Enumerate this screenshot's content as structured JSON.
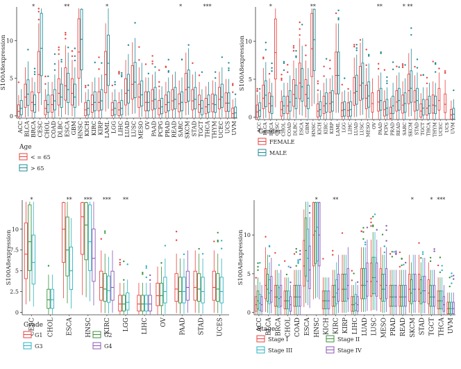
{
  "colors": {
    "red": "#e8423f",
    "teal": "#1f8a94",
    "green": "#3a8f3a",
    "cyan": "#2ab0c0",
    "purple": "#8a55b5",
    "axis": "#333333"
  },
  "chart_data": [
    {
      "id": "A",
      "type": "box",
      "title": "",
      "xlabel": "",
      "ylabel": "S100A8expression",
      "ylim": [
        -0.3,
        14.5
      ],
      "yticks": [
        0,
        5,
        10
      ],
      "categories": [
        "ACC",
        "BLCA",
        "BRCA",
        "CESC",
        "CHOL",
        "COAD",
        "DLBC",
        "ESCA",
        "GBM",
        "HNSC",
        "KICH",
        "KIRC",
        "KIRP",
        "LAML",
        "LGG",
        "LIHC",
        "LUAD",
        "LUSC",
        "MESO",
        "OV",
        "PAAD",
        "PCPG",
        "PRAD",
        "READ",
        "SARC",
        "SKCM",
        "STAD",
        "TGCT",
        "THCA",
        "THYM",
        "UCEC",
        "UCS",
        "UVM"
      ],
      "significance": [
        "",
        "",
        "*",
        "",
        "",
        "",
        "",
        "**",
        "",
        "",
        "",
        "",
        "",
        "*",
        "",
        "",
        "",
        "",
        "",
        "",
        "",
        "",
        "",
        "",
        "*",
        "",
        "",
        "",
        "***",
        "",
        "",
        "",
        ""
      ],
      "legend": {
        "title": "Age",
        "entries": [
          "< = 65",
          "> 65"
        ]
      },
      "series": [
        {
          "name": "< = 65",
          "medians": [
            0.6,
            2.5,
            1.8,
            5.5,
            1.0,
            1.5,
            3.0,
            4.0,
            3.0,
            8.5,
            0.8,
            1.5,
            1.8,
            5.5,
            0.8,
            0.8,
            3.0,
            4.2,
            2.5,
            1.8,
            2.0,
            1.0,
            1.5,
            2.0,
            1.6,
            3.5,
            2.0,
            1.5,
            1.2,
            1.6,
            2.2,
            1.7,
            0.3
          ]
        },
        {
          "name": "> 65",
          "medians": [
            1.0,
            2.9,
            1.5,
            9.0,
            1.5,
            2.0,
            2.5,
            3.5,
            2.5,
            10.2,
            1.0,
            1.8,
            2.0,
            7.0,
            1.0,
            1.0,
            3.4,
            4.5,
            2.8,
            1.8,
            2.2,
            1.2,
            1.8,
            2.2,
            1.8,
            3.8,
            2.2,
            1.0,
            1.5,
            1.5,
            2.5,
            1.7,
            0.4
          ]
        }
      ]
    },
    {
      "id": "B",
      "type": "box",
      "title": "",
      "xlabel": "",
      "ylabel": "S100A8expression",
      "ylim": [
        -0.3,
        14.5
      ],
      "yticks": [
        0,
        5,
        10
      ],
      "categories": [
        "ACC",
        "BLCA",
        "BRCA",
        "CESC",
        "CHOL",
        "COAD",
        "DLBC",
        "ESCA",
        "GBM",
        "HNSC",
        "KICH",
        "KIRC",
        "KIRP",
        "LAML",
        "LGG",
        "LIHC",
        "LUAD",
        "LUSC",
        "MESO",
        "OV",
        "PAAD",
        "PCPG",
        "PRAD",
        "READ",
        "SARC",
        "SKCM",
        "STAD",
        "TGCT",
        "THCA",
        "THYM",
        "UCEC",
        "UCS",
        "UVM"
      ],
      "significance": [
        "",
        "",
        "*",
        "",
        "",
        "",
        "",
        "",
        "",
        "**",
        "",
        "",
        "",
        "",
        "",
        "",
        "",
        "",
        "",
        "",
        "**",
        "",
        "",
        "",
        "*",
        "**",
        "",
        "",
        "",
        "",
        "",
        "",
        ""
      ],
      "legend": {
        "title": "Gender",
        "entries": [
          "FEMALE",
          "MALE"
        ]
      },
      "series": [
        {
          "name": "FEMALE",
          "medians": [
            0.7,
            2.5,
            1.8,
            8.5,
            1.0,
            1.5,
            3.0,
            4.5,
            3.0,
            9.0,
            0.8,
            1.5,
            1.8,
            5.5,
            0.9,
            0.9,
            3.2,
            4.2,
            2.5,
            1.8,
            2.0,
            1.0,
            0.5,
            2.0,
            1.6,
            3.5,
            2.0,
            0.8,
            1.2,
            1.6,
            2.2,
            1.7,
            0.3
          ]
        },
        {
          "name": "MALE",
          "medians": [
            0.9,
            2.9,
            1.5,
            0.0,
            1.5,
            2.0,
            2.5,
            4.0,
            2.5,
            10.2,
            1.0,
            1.8,
            2.0,
            5.5,
            1.0,
            1.0,
            3.4,
            4.5,
            2.8,
            0.0,
            2.2,
            1.2,
            1.5,
            2.2,
            1.8,
            3.8,
            2.2,
            1.2,
            1.5,
            1.5,
            0.0,
            0.0,
            0.4
          ]
        }
      ]
    },
    {
      "id": "C",
      "type": "box",
      "title": "",
      "xlabel": "",
      "ylabel": "S100A8expression",
      "ylim": [
        -0.3,
        13.5
      ],
      "yticks": [
        0,
        2.5,
        5,
        7.5,
        10
      ],
      "ytick_labels": [
        "0",
        "2.5",
        "5",
        "7.5",
        "10"
      ],
      "categories": [
        "CESC",
        "CHOL",
        "ESCA",
        "HNSC",
        "KIRC",
        "LGG",
        "LIHC",
        "OV",
        "PAAD",
        "STAD",
        "UCES"
      ],
      "significance": [
        "*",
        "",
        "**",
        "***",
        "***",
        "**",
        "",
        "",
        "",
        "",
        ""
      ],
      "legend": {
        "title": "Grade",
        "entries": [
          "G1",
          "G2",
          "G3",
          "G4"
        ]
      },
      "series": [
        {
          "name": "G1",
          "medians": [
            7.0,
            0,
            10.0,
            11.5,
            3.0,
            1.0,
            1.0,
            2.0,
            2.8,
            3.0,
            3.0
          ]
        },
        {
          "name": "G2",
          "medians": [
            8.5,
            1.5,
            7.5,
            10.5,
            2.8,
            1.0,
            1.0,
            2.0,
            2.5,
            2.8,
            2.8
          ]
        },
        {
          "name": "G3",
          "medians": [
            6.0,
            1.5,
            5.0,
            8.5,
            2.6,
            1.2,
            1.0,
            2.5,
            2.5,
            2.5,
            2.5
          ]
        },
        {
          "name": "G4",
          "medians": [
            0,
            0,
            0,
            6.5,
            3.0,
            0,
            1.0,
            0,
            3.0,
            0,
            0
          ]
        }
      ]
    },
    {
      "id": "D",
      "type": "box",
      "title": "",
      "xlabel": "",
      "ylabel": "S100A8expression",
      "ylim": [
        -0.3,
        14.5
      ],
      "yticks": [
        0,
        5,
        10
      ],
      "categories": [
        "ACC",
        "BLCA",
        "BRCA",
        "CHOL",
        "COAD",
        "ESCA",
        "HNSC",
        "KICH",
        "KIRC",
        "KIRP",
        "LIHC",
        "LUAD",
        "LUSC",
        "MESO",
        "PRAD",
        "READ",
        "SKCM",
        "STAD",
        "TGCT",
        "THCA",
        "UVM"
      ],
      "significance": [
        "",
        "",
        "",
        "",
        "",
        "",
        "*",
        "",
        "**",
        "",
        "",
        "",
        "",
        "",
        "",
        "",
        "*",
        "",
        "*",
        "***",
        ""
      ],
      "legend": {
        "title": "Stage",
        "entries": [
          "Stage I",
          "Stage II",
          "Stage III",
          "Stage IV"
        ]
      },
      "series": [
        {
          "name": "Stage I",
          "medians": [
            1.0,
            3.5,
            2.0,
            1.5,
            2.0,
            6.0,
            10.0,
            1.5,
            2.0,
            3.0,
            1.0,
            3.5,
            4.0,
            3.5,
            2.0,
            2.0,
            3.0,
            3.0,
            2.5,
            1.5,
            0.5
          ]
        },
        {
          "name": "Stage II",
          "medians": [
            1.5,
            3.0,
            2.0,
            1.5,
            2.0,
            8.0,
            10.5,
            1.5,
            2.0,
            3.0,
            1.0,
            3.5,
            4.5,
            3.0,
            2.0,
            2.0,
            2.5,
            2.5,
            2.0,
            1.5,
            0.5
          ]
        },
        {
          "name": "Stage III",
          "medians": [
            1.2,
            2.5,
            1.8,
            1.5,
            2.0,
            7.0,
            11.0,
            1.5,
            2.5,
            3.0,
            1.2,
            3.5,
            4.5,
            3.0,
            2.0,
            2.0,
            3.0,
            2.8,
            2.0,
            1.5,
            0.5
          ]
        },
        {
          "name": "Stage IV",
          "medians": [
            1.0,
            2.8,
            2.0,
            1.0,
            2.0,
            5.5,
            10.0,
            1.5,
            3.0,
            3.5,
            1.0,
            4.0,
            4.0,
            3.5,
            2.0,
            2.0,
            3.0,
            2.8,
            2.0,
            1.0,
            0.5
          ]
        }
      ]
    }
  ]
}
